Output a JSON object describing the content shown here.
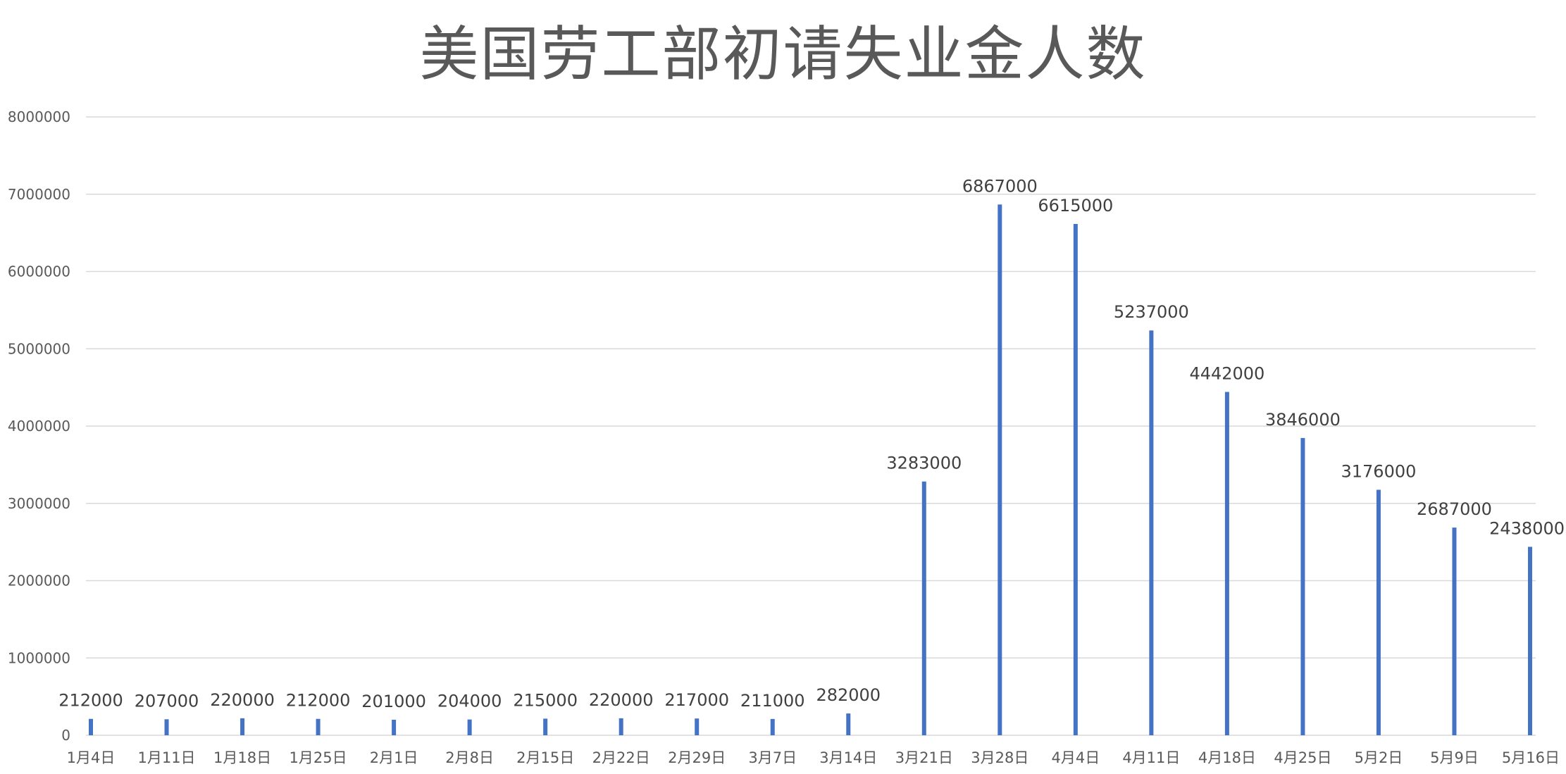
{
  "chart_data": {
    "type": "bar",
    "title": "美国劳工部初请失业金人数",
    "xlabel": "",
    "ylabel": "",
    "categories": [
      "1月4日",
      "1月11日",
      "1月18日",
      "1月25日",
      "2月1日",
      "2月8日",
      "2月15日",
      "2月22日",
      "2月29日",
      "3月7日",
      "3月14日",
      "3月21日",
      "3月28日",
      "4月4日",
      "4月11日",
      "4月18日",
      "4月25日",
      "5月2日",
      "5月9日",
      "5月16日"
    ],
    "values": [
      212000,
      207000,
      220000,
      212000,
      201000,
      204000,
      215000,
      220000,
      217000,
      211000,
      282000,
      3283000,
      6867000,
      6615000,
      5237000,
      4442000,
      3846000,
      3176000,
      2687000,
      2438000
    ],
    "data_labels": [
      "212000",
      "207000",
      "220000",
      "212000",
      "201000",
      "204000",
      "215000",
      "220000",
      "217000",
      "211000",
      "282000",
      "3283000",
      "6867000",
      "6615000",
      "5237000",
      "4442000",
      "3846000",
      "3176000",
      "2687000",
      "2438000"
    ],
    "yticks": [
      0,
      1000000,
      2000000,
      3000000,
      4000000,
      5000000,
      6000000,
      7000000,
      8000000
    ],
    "ytick_labels": [
      "0",
      "1000000",
      "2000000",
      "3000000",
      "4000000",
      "5000000",
      "6000000",
      "7000000",
      "8000000"
    ],
    "ylim": [
      0,
      8000000
    ],
    "grid": true,
    "legend": "none",
    "bar_color": "#4472C4",
    "grid_color": "#D9D9D9"
  }
}
